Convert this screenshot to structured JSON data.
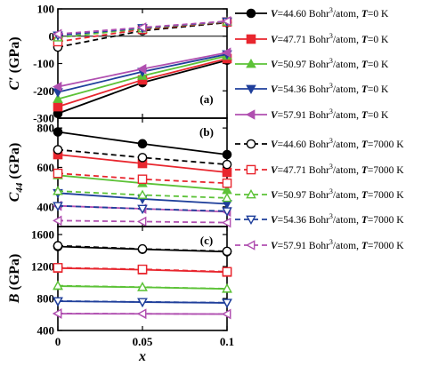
{
  "chart_data": {
    "type": "line",
    "x": [
      0,
      0.05,
      0.1
    ],
    "x_tick_labels": [
      "0",
      "0.05",
      "0.1"
    ],
    "xlabel": "x",
    "legend": [
      {
        "V": "44.60",
        "T": "0",
        "color": "#000000",
        "marker": "circle",
        "filled": true
      },
      {
        "V": "47.71",
        "T": "0",
        "color": "#e8262e",
        "marker": "square",
        "filled": true
      },
      {
        "V": "50.97",
        "T": "0",
        "color": "#5cc237",
        "marker": "triangle-up",
        "filled": true
      },
      {
        "V": "54.36",
        "T": "0",
        "color": "#1f3f9b",
        "marker": "triangle-down",
        "filled": true
      },
      {
        "V": "57.91",
        "T": "0",
        "color": "#b04fb0",
        "marker": "triangle-left",
        "filled": true
      },
      {
        "V": "44.60",
        "T": "7000",
        "color": "#000000",
        "marker": "circle",
        "filled": false
      },
      {
        "V": "47.71",
        "T": "7000",
        "color": "#e8262e",
        "marker": "square",
        "filled": false
      },
      {
        "V": "50.97",
        "T": "7000",
        "color": "#5cc237",
        "marker": "triangle-up",
        "filled": false
      },
      {
        "V": "54.36",
        "T": "7000",
        "color": "#1f3f9b",
        "marker": "triangle-down",
        "filled": false
      },
      {
        "V": "57.91",
        "T": "7000",
        "color": "#b04fb0",
        "marker": "triangle-left",
        "filled": false
      }
    ],
    "panels": [
      {
        "label": "(a)",
        "ylabel_sym": "C′",
        "ylabel_sub": "",
        "ylabel_unit": "(GPa)",
        "ylim": [
          -300,
          100
        ],
        "yticks": [
          -300,
          -200,
          -100,
          0,
          100
        ],
        "zero_line": true,
        "series": [
          [
            -283,
            -170,
            -88
          ],
          [
            -258,
            -160,
            -82
          ],
          [
            -230,
            -145,
            -72
          ],
          [
            -205,
            -130,
            -66
          ],
          [
            -185,
            -120,
            -60
          ],
          [
            -40,
            20,
            50
          ],
          [
            -20,
            25,
            52
          ],
          [
            -5,
            28,
            53
          ],
          [
            3,
            30,
            54
          ],
          [
            8,
            32,
            55
          ]
        ]
      },
      {
        "label": "(b)",
        "ylabel_sym": "C",
        "ylabel_sub": "44",
        "ylabel_unit": "(GPa)",
        "ylim": [
          300,
          850
        ],
        "yticks": [
          400,
          600,
          800
        ],
        "zero_line": false,
        "series": [
          [
            780,
            720,
            665
          ],
          [
            665,
            620,
            575
          ],
          [
            560,
            520,
            485
          ],
          [
            470,
            440,
            415
          ],
          [
            405,
            390,
            375
          ],
          [
            690,
            650,
            615
          ],
          [
            570,
            540,
            520
          ],
          [
            480,
            460,
            445
          ],
          [
            405,
            390,
            378
          ],
          [
            330,
            325,
            320
          ]
        ]
      },
      {
        "label": "(c)",
        "ylabel_sym": "B",
        "ylabel_sub": "",
        "ylabel_unit": "(GPa)",
        "ylim": [
          400,
          1700
        ],
        "yticks": [
          400,
          800,
          1200,
          1600
        ],
        "zero_line": false,
        "series": [
          [
            1450,
            1415,
            1385
          ],
          [
            1180,
            1160,
            1130
          ],
          [
            955,
            940,
            920
          ],
          [
            765,
            755,
            745
          ],
          [
            610,
            608,
            605
          ],
          [
            1460,
            1420,
            1390
          ],
          [
            1185,
            1165,
            1135
          ],
          [
            960,
            942,
            922
          ],
          [
            768,
            757,
            747
          ],
          [
            612,
            609,
            606
          ]
        ]
      }
    ]
  }
}
